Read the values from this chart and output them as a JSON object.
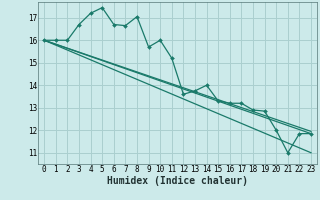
{
  "xlabel": "Humidex (Indice chaleur)",
  "bg_color": "#cceaea",
  "grid_color": "#aacfcf",
  "line_color": "#1a7a6a",
  "xlim": [
    -0.5,
    23.5
  ],
  "ylim": [
    10.5,
    17.7
  ],
  "xticks": [
    0,
    1,
    2,
    3,
    4,
    5,
    6,
    7,
    8,
    9,
    10,
    11,
    12,
    13,
    14,
    15,
    16,
    17,
    18,
    19,
    20,
    21,
    22,
    23
  ],
  "yticks": [
    11,
    12,
    13,
    14,
    15,
    16,
    17
  ],
  "line1_x": [
    0,
    1,
    2,
    3,
    4,
    5,
    6,
    7,
    8,
    9,
    10,
    11,
    12,
    13,
    14,
    15,
    16,
    17,
    18,
    19,
    20,
    21,
    22,
    23
  ],
  "line1_y": [
    16.0,
    16.0,
    16.0,
    16.7,
    17.2,
    17.45,
    16.7,
    16.65,
    17.05,
    15.7,
    16.0,
    15.2,
    13.6,
    13.75,
    14.0,
    13.3,
    13.2,
    13.2,
    12.9,
    12.85,
    12.0,
    11.0,
    11.85,
    11.85
  ],
  "line2_x": [
    0,
    23
  ],
  "line2_y": [
    16.0,
    11.85
  ],
  "line3_x": [
    0,
    23
  ],
  "line3_y": [
    16.0,
    11.95
  ],
  "line4_x": [
    0,
    23
  ],
  "line4_y": [
    16.0,
    11.0
  ]
}
